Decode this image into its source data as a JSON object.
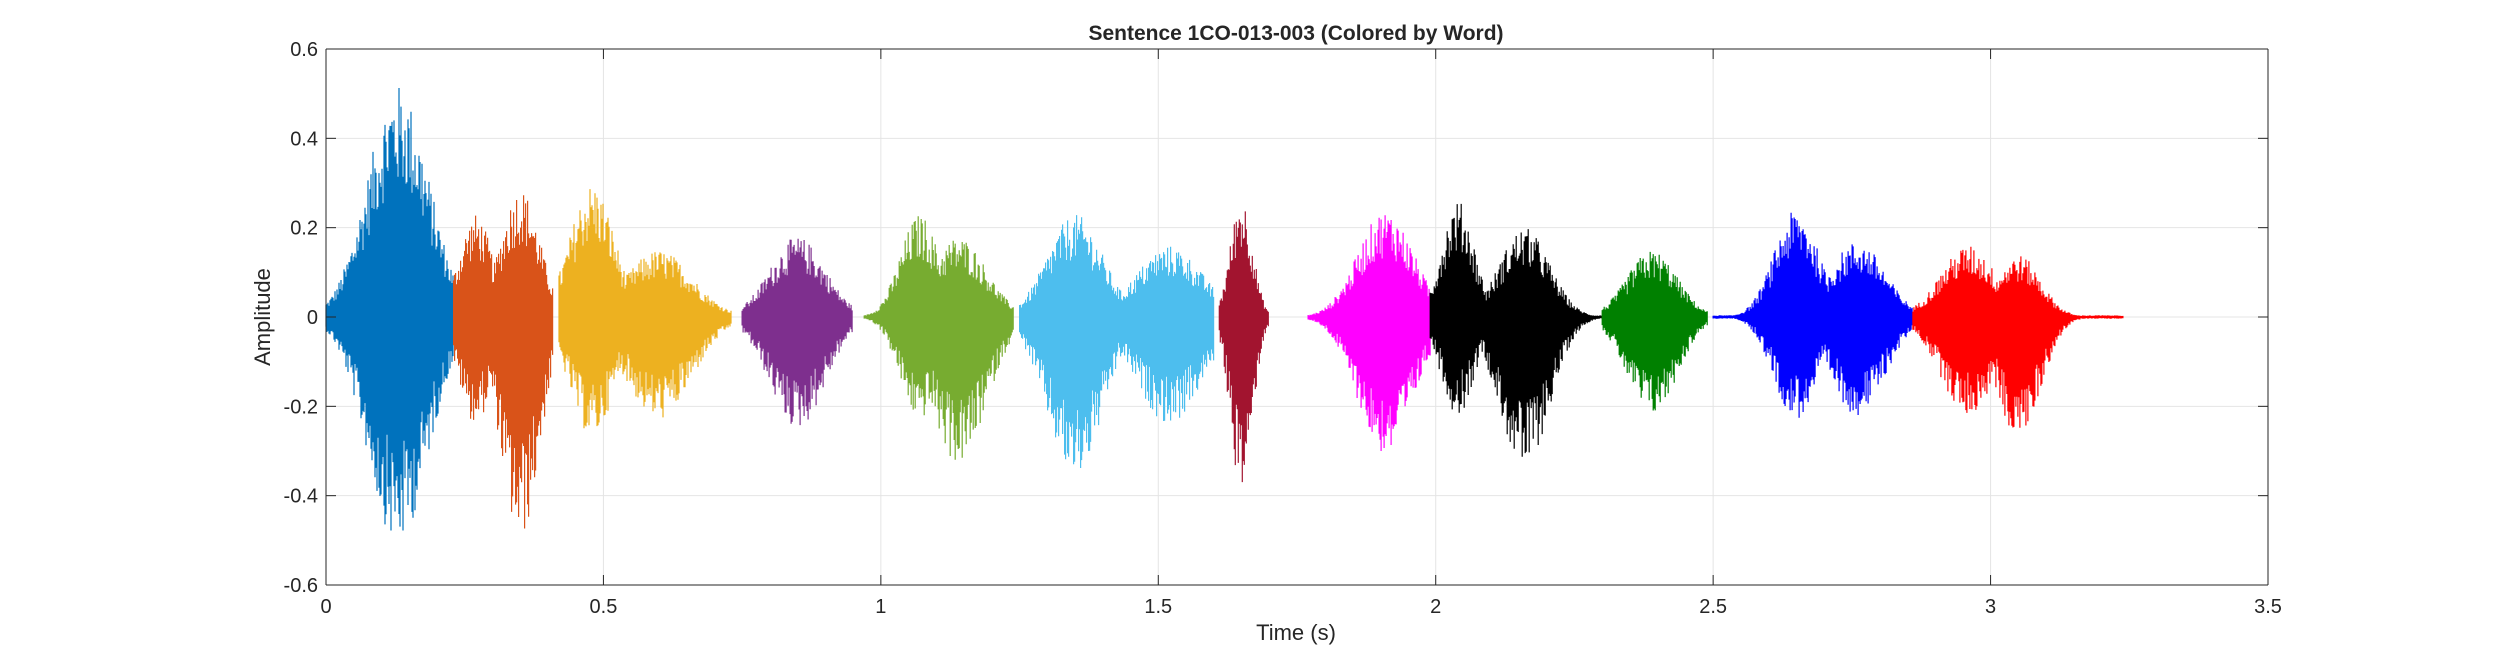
{
  "chart_data": {
    "type": "line",
    "title": "Sentence 1CO-013-003 (Colored by Word)",
    "xlabel": "Time (s)",
    "ylabel": "Amplitude",
    "xlim": [
      0,
      3.5
    ],
    "ylim": [
      -0.6,
      0.6
    ],
    "xticks": [
      0,
      0.5,
      1,
      1.5,
      2,
      2.5,
      3,
      3.5
    ],
    "xtick_labels": [
      "0",
      "0.5",
      "1",
      "1.5",
      "2",
      "2.5",
      "3",
      "3.5"
    ],
    "yticks": [
      -0.6,
      -0.4,
      -0.2,
      0,
      0.2,
      0.4,
      0.6
    ],
    "ytick_labels": [
      "-0.6",
      "-0.4",
      "-0.2",
      "0",
      "0.2",
      "0.4",
      "0.6"
    ],
    "grid": true,
    "series": [
      {
        "color": "#0072BD",
        "segments": [
          {
            "start": 0.0,
            "end": 0.23,
            "bursts": [
              {
                "center": 0.13,
                "width": 0.055,
                "max": 0.52,
                "min": -0.51
              },
              {
                "center": 0.06,
                "width": 0.03,
                "max": 0.1,
                "min": -0.1
              }
            ]
          }
        ]
      },
      {
        "color": "#D95319",
        "segments": [
          {
            "start": 0.23,
            "end": 0.41,
            "bursts": [
              {
                "center": 0.27,
                "width": 0.03,
                "max": 0.23,
                "min": -0.24
              },
              {
                "center": 0.35,
                "width": 0.035,
                "max": 0.29,
                "min": -0.5
              }
            ]
          }
        ]
      },
      {
        "color": "#EDB120",
        "segments": [
          {
            "start": 0.42,
            "end": 0.73,
            "bursts": [
              {
                "center": 0.48,
                "width": 0.04,
                "max": 0.3,
                "min": -0.27
              },
              {
                "center": 0.6,
                "width": 0.06,
                "max": 0.15,
                "min": -0.23
              }
            ]
          }
        ]
      },
      {
        "color": "#7E2F8E",
        "segments": [
          {
            "start": 0.75,
            "end": 0.95,
            "bursts": [
              {
                "center": 0.85,
                "width": 0.05,
                "max": 0.18,
                "min": -0.25
              }
            ]
          }
        ]
      },
      {
        "color": "#77AC30",
        "segments": [
          {
            "start": 0.97,
            "end": 1.24,
            "bursts": [
              {
                "center": 1.07,
                "width": 0.035,
                "max": 0.23,
                "min": -0.23
              },
              {
                "center": 1.14,
                "width": 0.05,
                "max": 0.18,
                "min": -0.33
              }
            ]
          }
        ]
      },
      {
        "color": "#4DBEEE",
        "segments": [
          {
            "start": 1.25,
            "end": 1.6,
            "bursts": [
              {
                "center": 1.35,
                "width": 0.05,
                "max": 0.23,
                "min": -0.36
              },
              {
                "center": 1.52,
                "width": 0.06,
                "max": 0.16,
                "min": -0.24
              }
            ]
          }
        ]
      },
      {
        "color": "#A2142F",
        "segments": [
          {
            "start": 1.61,
            "end": 1.7,
            "bursts": [
              {
                "center": 1.65,
                "width": 0.02,
                "max": 0.27,
                "min": -0.39
              }
            ]
          }
        ]
      },
      {
        "color": "#FF00FF",
        "segments": [
          {
            "start": 1.77,
            "end": 1.99,
            "bursts": [
              {
                "center": 1.91,
                "width": 0.05,
                "max": 0.24,
                "min": -0.31
              }
            ]
          }
        ]
      },
      {
        "color": "#000000",
        "segments": [
          {
            "start": 1.99,
            "end": 2.3,
            "bursts": [
              {
                "center": 2.04,
                "width": 0.03,
                "max": 0.26,
                "min": -0.22
              },
              {
                "center": 2.16,
                "width": 0.045,
                "max": 0.2,
                "min": -0.34
              }
            ]
          }
        ]
      },
      {
        "color": "#008000",
        "segments": [
          {
            "start": 2.3,
            "end": 2.49,
            "bursts": [
              {
                "center": 2.39,
                "width": 0.045,
                "max": 0.15,
                "min": -0.22
              }
            ]
          }
        ]
      },
      {
        "color": "#0000FF",
        "segments": [
          {
            "start": 2.5,
            "end": 2.86,
            "bursts": [
              {
                "center": 2.65,
                "width": 0.04,
                "max": 0.24,
                "min": -0.23
              },
              {
                "center": 2.76,
                "width": 0.05,
                "max": 0.17,
                "min": -0.22
              }
            ]
          }
        ]
      },
      {
        "color": "#FF0000",
        "segments": [
          {
            "start": 2.86,
            "end": 3.24,
            "bursts": [
              {
                "center": 2.96,
                "width": 0.05,
                "max": 0.16,
                "min": -0.22
              },
              {
                "center": 3.05,
                "width": 0.04,
                "max": 0.14,
                "min": -0.27
              }
            ]
          }
        ]
      }
    ]
  }
}
